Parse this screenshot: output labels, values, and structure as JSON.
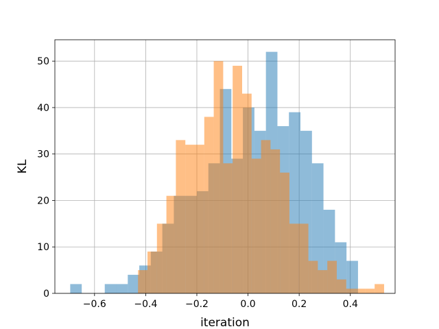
{
  "chart_data": {
    "type": "bar",
    "subtype": "overlapping-histogram",
    "title": "",
    "xlabel": "iteration",
    "ylabel": "KL",
    "xlim": [
      -0.755,
      0.575
    ],
    "ylim": [
      0,
      54.6
    ],
    "xticks": [
      -0.6,
      -0.4,
      -0.2,
      0.0,
      0.2,
      0.4
    ],
    "xtick_labels": [
      "−0.6",
      "−0.4",
      "−0.2",
      "0.0",
      "0.2",
      "0.4"
    ],
    "yticks": [
      0,
      10,
      20,
      30,
      40,
      50
    ],
    "ytick_labels": [
      "0",
      "10",
      "20",
      "30",
      "40",
      "50"
    ],
    "grid": true,
    "legend": "none",
    "series": [
      {
        "color": "#1f77b4",
        "opacity": 0.5,
        "bins": [
          {
            "x0": -0.695,
            "x1": -0.65,
            "count": 2
          },
          {
            "x0": -0.65,
            "x1": -0.605,
            "count": 0
          },
          {
            "x0": -0.605,
            "x1": -0.56,
            "count": 0
          },
          {
            "x0": -0.56,
            "x1": -0.515,
            "count": 2
          },
          {
            "x0": -0.515,
            "x1": -0.47,
            "count": 2
          },
          {
            "x0": -0.47,
            "x1": -0.425,
            "count": 4
          },
          {
            "x0": -0.425,
            "x1": -0.38,
            "count": 6
          },
          {
            "x0": -0.38,
            "x1": -0.335,
            "count": 9
          },
          {
            "x0": -0.335,
            "x1": -0.29,
            "count": 15
          },
          {
            "x0": -0.29,
            "x1": -0.245,
            "count": 21
          },
          {
            "x0": -0.245,
            "x1": -0.2,
            "count": 21
          },
          {
            "x0": -0.2,
            "x1": -0.155,
            "count": 22
          },
          {
            "x0": -0.155,
            "x1": -0.11,
            "count": 28
          },
          {
            "x0": -0.11,
            "x1": -0.065,
            "count": 44
          },
          {
            "x0": -0.065,
            "x1": -0.02,
            "count": 29
          },
          {
            "x0": -0.02,
            "x1": 0.025,
            "count": 40
          },
          {
            "x0": 0.025,
            "x1": 0.07,
            "count": 35
          },
          {
            "x0": 0.07,
            "x1": 0.115,
            "count": 52
          },
          {
            "x0": 0.115,
            "x1": 0.16,
            "count": 36
          },
          {
            "x0": 0.16,
            "x1": 0.205,
            "count": 39
          },
          {
            "x0": 0.205,
            "x1": 0.25,
            "count": 35
          },
          {
            "x0": 0.25,
            "x1": 0.295,
            "count": 28
          },
          {
            "x0": 0.295,
            "x1": 0.34,
            "count": 18
          },
          {
            "x0": 0.34,
            "x1": 0.385,
            "count": 11
          },
          {
            "x0": 0.385,
            "x1": 0.43,
            "count": 7
          }
        ]
      },
      {
        "color": "#ff7f0e",
        "opacity": 0.5,
        "bins": [
          {
            "x0": -0.43,
            "x1": -0.393,
            "count": 5
          },
          {
            "x0": -0.393,
            "x1": -0.356,
            "count": 9
          },
          {
            "x0": -0.356,
            "x1": -0.319,
            "count": 15
          },
          {
            "x0": -0.319,
            "x1": -0.282,
            "count": 21
          },
          {
            "x0": -0.282,
            "x1": -0.245,
            "count": 33
          },
          {
            "x0": -0.245,
            "x1": -0.208,
            "count": 32
          },
          {
            "x0": -0.208,
            "x1": -0.171,
            "count": 32
          },
          {
            "x0": -0.171,
            "x1": -0.134,
            "count": 38
          },
          {
            "x0": -0.134,
            "x1": -0.097,
            "count": 50
          },
          {
            "x0": -0.097,
            "x1": -0.06,
            "count": 28
          },
          {
            "x0": -0.06,
            "x1": -0.023,
            "count": 49
          },
          {
            "x0": -0.023,
            "x1": 0.014,
            "count": 43
          },
          {
            "x0": 0.014,
            "x1": 0.051,
            "count": 29
          },
          {
            "x0": 0.051,
            "x1": 0.088,
            "count": 33
          },
          {
            "x0": 0.088,
            "x1": 0.125,
            "count": 31
          },
          {
            "x0": 0.125,
            "x1": 0.162,
            "count": 26
          },
          {
            "x0": 0.162,
            "x1": 0.199,
            "count": 15
          },
          {
            "x0": 0.199,
            "x1": 0.236,
            "count": 15
          },
          {
            "x0": 0.236,
            "x1": 0.273,
            "count": 7
          },
          {
            "x0": 0.273,
            "x1": 0.31,
            "count": 5
          },
          {
            "x0": 0.31,
            "x1": 0.347,
            "count": 7
          },
          {
            "x0": 0.347,
            "x1": 0.384,
            "count": 3
          },
          {
            "x0": 0.384,
            "x1": 0.421,
            "count": 1
          },
          {
            "x0": 0.421,
            "x1": 0.458,
            "count": 1
          },
          {
            "x0": 0.458,
            "x1": 0.495,
            "count": 1
          },
          {
            "x0": 0.495,
            "x1": 0.532,
            "count": 2
          }
        ]
      }
    ]
  }
}
